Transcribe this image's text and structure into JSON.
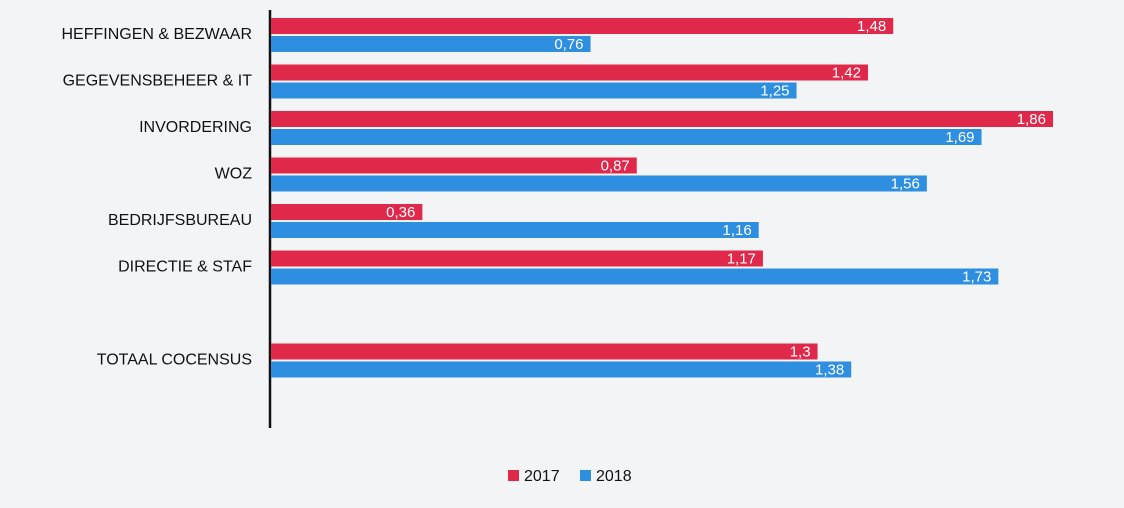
{
  "chart_data": {
    "type": "hbar",
    "categories": [
      "HEFFINGEN & BEZWAAR",
      "GEGEVENSBEHEER & IT",
      "INVORDERING",
      "WOZ",
      "BEDRIJFSBUREAU",
      "DIRECTIE & STAF",
      null,
      "TOTAAL COCENSUS"
    ],
    "series": [
      {
        "name": "2017",
        "color": "#e0284a",
        "values": [
          1.48,
          1.42,
          1.86,
          0.87,
          0.36,
          1.17,
          null,
          1.3
        ],
        "value_labels": [
          "1,48",
          "1,42",
          "1,86",
          "0,87",
          "0,36",
          "1,17",
          null,
          "1,3"
        ]
      },
      {
        "name": "2018",
        "color": "#2e8ee0",
        "values": [
          0.76,
          1.25,
          1.69,
          1.56,
          1.16,
          1.73,
          null,
          1.38
        ],
        "value_labels": [
          "0,76",
          "1,25",
          "1,69",
          "1,56",
          "1,16",
          "1,73",
          null,
          "1,38"
        ]
      }
    ],
    "legend": "bottom"
  }
}
